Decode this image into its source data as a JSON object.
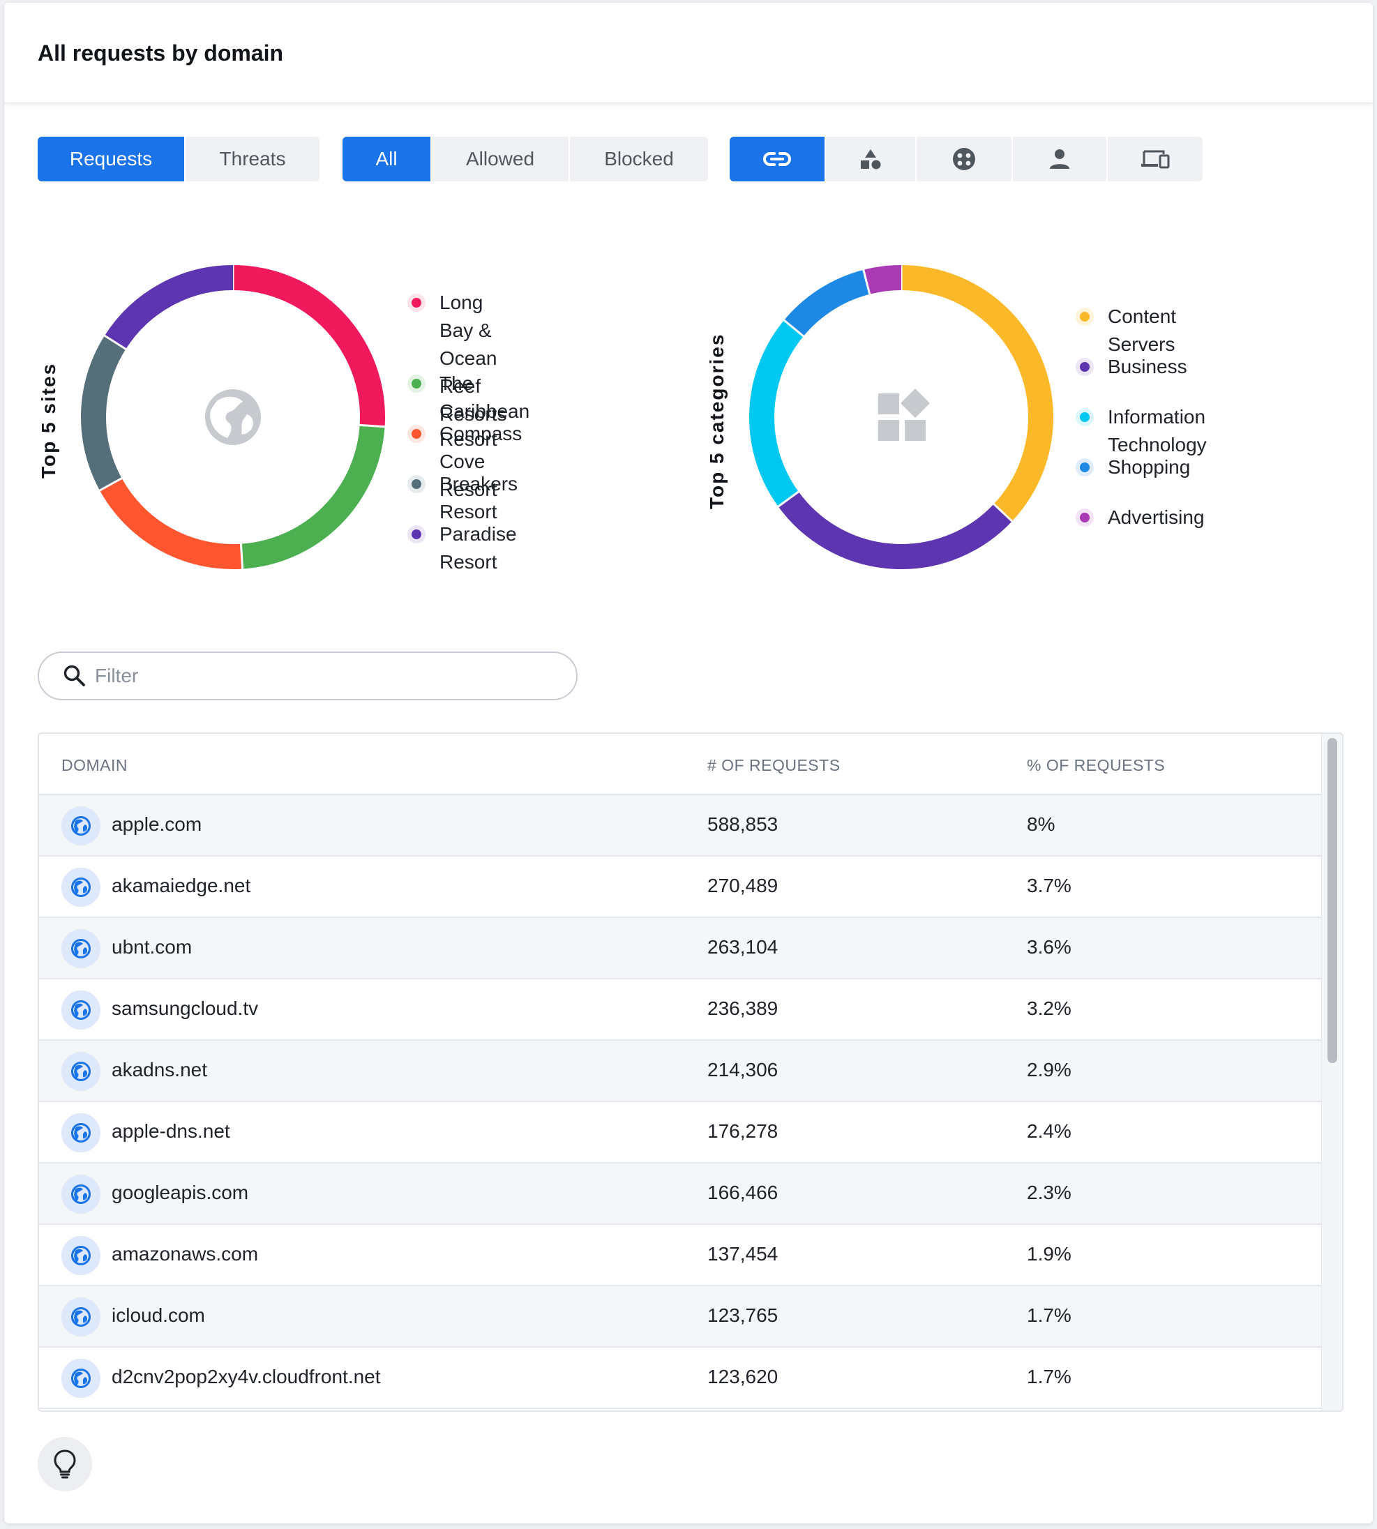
{
  "header": {
    "title": "All requests by domain"
  },
  "toggles": {
    "metric": [
      {
        "label": "Requests",
        "active": true
      },
      {
        "label": "Threats",
        "active": false
      }
    ],
    "status": [
      {
        "label": "All",
        "active": true
      },
      {
        "label": "Allowed",
        "active": false
      },
      {
        "label": "Blocked",
        "active": false
      }
    ],
    "grouping": [
      {
        "icon": "link-icon",
        "active": true
      },
      {
        "icon": "shapes-icon",
        "active": false
      },
      {
        "icon": "apps-icon",
        "active": false
      },
      {
        "icon": "person-icon",
        "active": false
      },
      {
        "icon": "devices-icon",
        "active": false
      }
    ]
  },
  "sites_chart": {
    "label": "Top 5 sites",
    "center_icon": "globe-icon",
    "legend": [
      {
        "name": "Long Bay & Ocean Reef Resorts",
        "line1": "Long Bay & Ocean Reef",
        "line2": "Resorts",
        "color": "#f0195c"
      },
      {
        "name": "The Caribbean Resort",
        "color": "#4caf50"
      },
      {
        "name": "Compass Cove Resort",
        "color": "#ff5630"
      },
      {
        "name": "Breakers Resort",
        "color": "#546e7a"
      },
      {
        "name": "Paradise Resort",
        "color": "#5e35b1"
      }
    ]
  },
  "categories_chart": {
    "label": "Top 5 categories",
    "center_icon": "categories-icon",
    "legend": [
      {
        "name": "Content Servers",
        "color": "#fbb829"
      },
      {
        "name": "Business",
        "color": "#5e35b1"
      },
      {
        "name": "Information Technology",
        "color": "#00c8f0"
      },
      {
        "name": "Shopping",
        "color": "#1e88e5"
      },
      {
        "name": "Advertising",
        "color": "#a93ab3"
      }
    ]
  },
  "chart_data": [
    {
      "type": "pie",
      "title": "Top 5 sites",
      "categories": [
        "Long Bay & Ocean Reef Resorts",
        "The Caribbean Resort",
        "Compass Cove Resort",
        "Breakers Resort",
        "Paradise Resort"
      ],
      "values": [
        26,
        23,
        18,
        17,
        16
      ],
      "colors": [
        "#f0195c",
        "#4caf50",
        "#ff5630",
        "#546e7a",
        "#5e35b1"
      ],
      "donut": true
    },
    {
      "type": "pie",
      "title": "Top 5 categories",
      "categories": [
        "Content Servers",
        "Business",
        "Information Technology",
        "Shopping",
        "Advertising"
      ],
      "values": [
        37,
        28,
        21,
        10,
        4
      ],
      "colors": [
        "#fbb829",
        "#5e35b1",
        "#00c8f0",
        "#1e88e5",
        "#a93ab3"
      ],
      "donut": true
    }
  ],
  "filter": {
    "placeholder": "Filter",
    "value": ""
  },
  "table": {
    "columns": [
      "DOMAIN",
      "# OF REQUESTS",
      "% OF REQUESTS"
    ],
    "rows": [
      {
        "domain": "apple.com",
        "requests": "588,853",
        "percent": "8%"
      },
      {
        "domain": "akamaiedge.net",
        "requests": "270,489",
        "percent": "3.7%"
      },
      {
        "domain": "ubnt.com",
        "requests": "263,104",
        "percent": "3.6%"
      },
      {
        "domain": "samsungcloud.tv",
        "requests": "236,389",
        "percent": "3.2%"
      },
      {
        "domain": "akadns.net",
        "requests": "214,306",
        "percent": "2.9%"
      },
      {
        "domain": "apple-dns.net",
        "requests": "176,278",
        "percent": "2.4%"
      },
      {
        "domain": "googleapis.com",
        "requests": "166,466",
        "percent": "2.3%"
      },
      {
        "domain": "amazonaws.com",
        "requests": "137,454",
        "percent": "1.9%"
      },
      {
        "domain": "icloud.com",
        "requests": "123,765",
        "percent": "1.7%"
      },
      {
        "domain": "d2cnv2pop2xy4v.cloudfront.net",
        "requests": "123,620",
        "percent": "1.7%"
      }
    ]
  },
  "hint": {
    "icon": "lightbulb-icon"
  }
}
